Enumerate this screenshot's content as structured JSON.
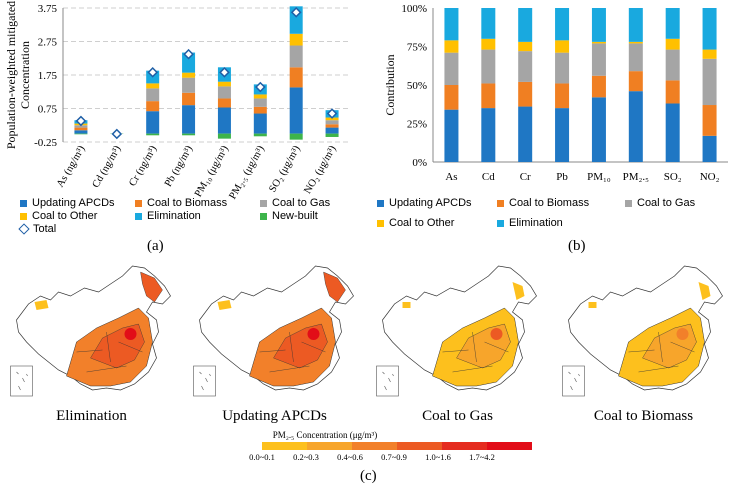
{
  "chart_data": [
    {
      "type": "bar",
      "stacked": true,
      "ylabel_line1": "Population-weighted mitigated",
      "ylabel_line2": "Concentration",
      "ylim": [
        -0.25,
        3.75
      ],
      "yticks": [
        -0.25,
        0.75,
        1.75,
        2.75,
        3.75
      ],
      "ytick_labels": [
        "-0.25",
        "0.75",
        "1.75",
        "2.75",
        "3.75"
      ],
      "grid": true,
      "categories": [
        "As (ng/m³)",
        "Cd (ng/m³)",
        "Cr (ng/m³)",
        "Pb (ng/m³)",
        "PM₁₀ (μg/m³)",
        "PM₂.₅ (μg/m³)",
        "SO₂ (μg/m³)",
        "NO₂ (μg/m³)"
      ],
      "series": [
        {
          "name": "Updating APCDs",
          "color": "#1f77c4",
          "values": [
            0.1,
            0.0,
            0.67,
            0.85,
            0.78,
            0.6,
            1.38,
            0.18
          ]
        },
        {
          "name": "Coal to Biomass",
          "color": "#f07f22",
          "values": [
            0.08,
            0.0,
            0.3,
            0.37,
            0.27,
            0.2,
            0.6,
            0.1
          ]
        },
        {
          "name": "Coal to Gas",
          "color": "#a5a5a5",
          "values": [
            0.07,
            0.0,
            0.38,
            0.45,
            0.36,
            0.25,
            0.65,
            0.12
          ]
        },
        {
          "name": "Coal to Other",
          "color": "#ffc000",
          "values": [
            0.05,
            0.0,
            0.15,
            0.15,
            0.14,
            0.12,
            0.35,
            0.08
          ]
        },
        {
          "name": "Elimination",
          "color": "#19a9df",
          "values": [
            0.1,
            0.0,
            0.38,
            0.6,
            0.43,
            0.3,
            0.82,
            0.22
          ]
        },
        {
          "name": "New-built",
          "color": "#3db44b",
          "values": [
            -0.02,
            -0.01,
            -0.05,
            -0.05,
            -0.15,
            -0.08,
            -0.18,
            -0.1
          ]
        }
      ],
      "total": {
        "name": "Total",
        "values": [
          0.38,
          -0.01,
          1.83,
          2.37,
          1.83,
          1.39,
          3.62,
          0.6
        ]
      },
      "legend_position": "bottom"
    },
    {
      "type": "bar",
      "stacked": true,
      "ylabel": "Contribution",
      "ylim": [
        0,
        100
      ],
      "yticks": [
        0,
        25,
        50,
        75,
        100
      ],
      "ytick_labels": [
        "0%",
        "25%",
        "50%",
        "75%",
        "100%"
      ],
      "grid": false,
      "categories": [
        "As",
        "Cd",
        "Cr",
        "Pb",
        "PM₁₀",
        "PM₂.₅",
        "SO₂",
        "NO₂"
      ],
      "series": [
        {
          "name": "Updating APCDs",
          "color": "#1f77c4",
          "values": [
            34,
            35,
            36,
            35,
            42,
            46,
            38,
            17
          ]
        },
        {
          "name": "Coal to Biomass",
          "color": "#f07f22",
          "values": [
            16,
            16,
            16,
            16,
            14,
            13,
            15,
            20
          ]
        },
        {
          "name": "Coal to Gas",
          "color": "#a5a5a5",
          "values": [
            21,
            22,
            20,
            20,
            21,
            18,
            20,
            30
          ]
        },
        {
          "name": "Coal to Other",
          "color": "#ffc000",
          "values": [
            8,
            7,
            6,
            8,
            1,
            1,
            7,
            6
          ]
        },
        {
          "name": "Elimination",
          "color": "#19a9df",
          "values": [
            21,
            20,
            22,
            21,
            22,
            22,
            20,
            27
          ]
        }
      ],
      "legend_position": "bottom"
    }
  ],
  "panel_labels": {
    "a": "(a)",
    "b": "(b)",
    "c": "(c)"
  },
  "legend_a": {
    "updating": "Updating APCDs",
    "biomass": "Coal to Biomass",
    "gas": "Coal to Gas",
    "other": "Coal to Other",
    "elimination": "Elimination",
    "newbuilt": "New-built",
    "total": "Total"
  },
  "legend_b": {
    "updating": "Updating APCDs",
    "biomass": "Coal to Biomass",
    "gas": "Coal to Gas",
    "other": "Coal to Other",
    "elimination": "Elimination"
  },
  "maps": {
    "titles": [
      "Elimination",
      "Updating APCDs",
      "Coal to Gas",
      "Coal to Biomass"
    ]
  },
  "colorbar": {
    "title": "PM₂.₅ Concentration (μg/m³)",
    "colors": [
      "#fdc01d",
      "#f7a52b",
      "#f2802a",
      "#ec5a23",
      "#e52c1f",
      "#e20d18"
    ],
    "labels": [
      "0.0~0.1",
      "0.2~0.3",
      "0.4~0.6",
      "0.7~0.9",
      "1.0~1.6",
      "1.7~4.2"
    ]
  }
}
